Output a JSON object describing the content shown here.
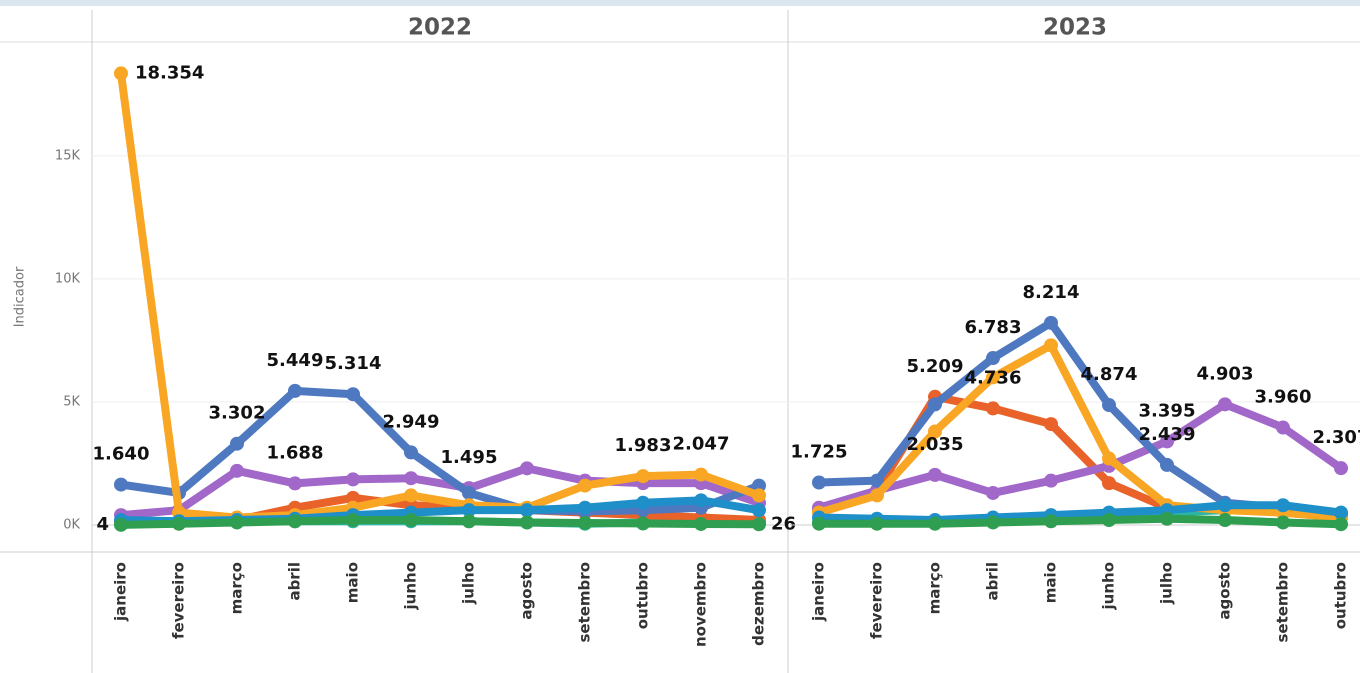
{
  "chart_data": [
    {
      "type": "line",
      "title": "2022",
      "y_label": "Indicador",
      "categories": [
        "janeiro",
        "fevereiro",
        "março",
        "abril",
        "maio",
        "junho",
        "julho",
        "agosto",
        "setembro",
        "outubro",
        "novembro",
        "dezembro"
      ],
      "ylim": [
        -1100,
        19630
      ],
      "yticks": [
        {
          "value": 0,
          "label": "0K"
        },
        {
          "value": 5000,
          "label": "5K"
        },
        {
          "value": 10000,
          "label": "10K"
        },
        {
          "value": 15000,
          "label": "15K"
        }
      ],
      "grid": true,
      "series": [
        {
          "color": "#2ab5a5",
          "values": [
            150,
            150,
            150,
            150,
            150,
            150,
            150,
            100,
            50,
            100,
            100,
            100
          ]
        },
        {
          "color": "#e8622a",
          "values": [
            100,
            50,
            200,
            700,
            1100,
            800,
            700,
            600,
            500,
            400,
            300,
            200
          ]
        },
        {
          "color": "#a167c9",
          "values": [
            400,
            600,
            2200,
            1688,
            1850,
            1900,
            1495,
            2300,
            1800,
            1700,
            1700,
            900
          ],
          "value_labels": [
            null,
            null,
            null,
            "1.688",
            null,
            null,
            "1.495",
            null,
            null,
            null,
            null,
            null
          ]
        },
        {
          "color": "#4e79c0",
          "values": [
            1640,
            1300,
            3302,
            5449,
            5314,
            2949,
            1300,
            600,
            550,
            600,
            700,
            1600
          ],
          "value_labels": [
            "1.640",
            null,
            "3.302",
            "5.449",
            "5.314",
            "2.949",
            null,
            null,
            null,
            null,
            null,
            null
          ]
        },
        {
          "color": "#f8a623",
          "values": [
            18354,
            500,
            300,
            400,
            700,
            1200,
            800,
            700,
            1600,
            1983,
            2047,
            1200
          ],
          "value_labels": [
            "18.354",
            null,
            null,
            null,
            null,
            null,
            null,
            null,
            null,
            "1.983",
            "2.047",
            null
          ]
        },
        {
          "color": "#1f8fc9",
          "values": [
            200,
            150,
            200,
            250,
            400,
            500,
            600,
            600,
            700,
            900,
            1000,
            600
          ]
        },
        {
          "color": "#2f9e50",
          "values": [
            4,
            50,
            100,
            150,
            200,
            200,
            150,
            100,
            80,
            60,
            40,
            26
          ],
          "value_labels": [
            "4",
            null,
            null,
            null,
            null,
            null,
            null,
            null,
            null,
            null,
            null,
            "26"
          ]
        }
      ]
    },
    {
      "type": "line",
      "title": "2023",
      "categories": [
        "janeiro",
        "fevereiro",
        "março",
        "abril",
        "maio",
        "junho",
        "julho",
        "agosto",
        "setembro",
        "outubro"
      ],
      "ylim": [
        -1100,
        19630
      ],
      "yticks": [
        0,
        5000,
        10000,
        15000
      ],
      "grid": true,
      "series": [
        {
          "color": "#2ab5a5",
          "values": [
            100,
            100,
            150,
            200,
            300,
            400,
            500,
            600,
            600,
            300
          ]
        },
        {
          "color": "#e8622a",
          "values": [
            600,
            1400,
            5209,
            4736,
            4100,
            1700,
            700,
            700,
            500,
            300
          ],
          "value_labels": [
            null,
            null,
            "5.209",
            "4.736",
            null,
            null,
            null,
            null,
            null,
            null
          ]
        },
        {
          "color": "#a167c9",
          "values": [
            700,
            1400,
            2035,
            1300,
            1800,
            2400,
            3395,
            4903,
            3960,
            2307
          ],
          "value_labels": [
            null,
            null,
            "2.035",
            null,
            null,
            null,
            "3.395",
            "4.903",
            "3.960",
            "2.307"
          ]
        },
        {
          "color": "#4e79c0",
          "values": [
            1725,
            1800,
            4900,
            6783,
            8214,
            4874,
            2439,
            900,
            700,
            400
          ],
          "value_labels": [
            "1.725",
            null,
            null,
            "6.783",
            "8.214",
            "4.874",
            "2.439",
            null,
            null,
            null
          ]
        },
        {
          "color": "#f8a623",
          "values": [
            500,
            1200,
            3800,
            6000,
            7300,
            2700,
            800,
            600,
            500,
            300
          ]
        },
        {
          "color": "#1f8fc9",
          "values": [
            300,
            250,
            200,
            300,
            400,
            500,
            600,
            800,
            800,
            500
          ]
        },
        {
          "color": "#2f9e50",
          "values": [
            50,
            50,
            50,
            100,
            150,
            200,
            250,
            200,
            100,
            30
          ]
        }
      ]
    }
  ]
}
